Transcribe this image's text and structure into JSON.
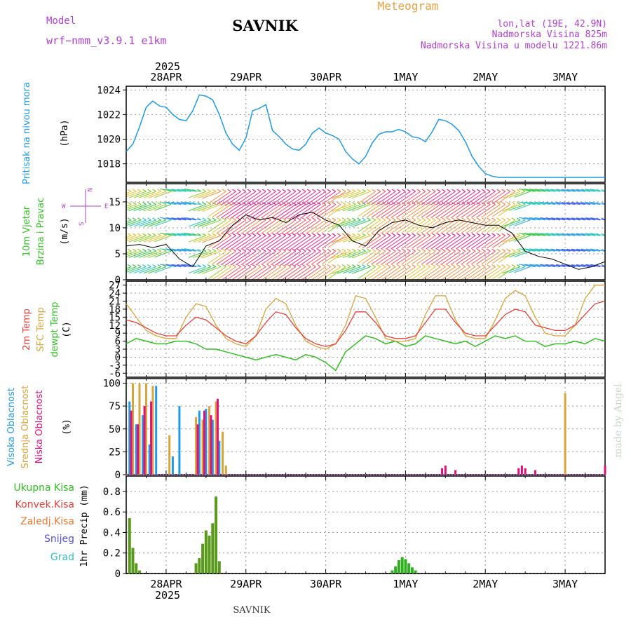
{
  "header": {
    "title": "SAVNIK",
    "model_label": "Model",
    "model_name": "wrf−nmm_v3.9.1  e1km",
    "meteogram_label": "Meteogram",
    "lonlat": "lon,lat (19E, 42.9N)",
    "elevation": "Nadmorska Visina 825m",
    "model_elevation": "Nadmorska Visina u modelu 1221.86m",
    "footer": "SAVNIK",
    "credit": "made by Angel"
  },
  "colors": {
    "pressure": "#1e9be6",
    "temp2m": "#e8403a",
    "sfc_temp": "#d9a53a",
    "dewpoint": "#30c020",
    "wind_line": "#000000",
    "high_cloud": "#1e9be6",
    "mid_cloud": "#d9a53a",
    "low_cloud": "#e0107a",
    "rain_total": "#5a9a1a",
    "rain_conv": "#e8403a",
    "label_magenta": "#b040d0",
    "label_orange": "#e8a040"
  },
  "time_axis": {
    "year": "2025",
    "days": [
      "28APR",
      "29APR",
      "30APR",
      "1MAY",
      "2MAY",
      "3MAY"
    ],
    "day_positions_hours": [
      12,
      36,
      60,
      84,
      108,
      132
    ],
    "range_hours": [
      0,
      144
    ]
  },
  "chart_data": [
    {
      "type": "line",
      "title": "Pritisak na nivou mora",
      "ylabel": "(hPa)",
      "ylim": [
        1016.5,
        1024.3
      ],
      "yticks": [
        1018,
        1020,
        1022,
        1024
      ],
      "grid": true,
      "series": [
        {
          "name": "Pritisak na nivou mora",
          "x": [
            0,
            2,
            4,
            6,
            8,
            10,
            12,
            14,
            16,
            18,
            20,
            22,
            24,
            26,
            28,
            30,
            32,
            34,
            36,
            38,
            40,
            42,
            44,
            46,
            48,
            50,
            52,
            54,
            56,
            58,
            60,
            62,
            64,
            66,
            68,
            70,
            72,
            74,
            76,
            78,
            80,
            82,
            84,
            86,
            88,
            90,
            92,
            94,
            96,
            98,
            100,
            102,
            104,
            106,
            108,
            110,
            112,
            114,
            116,
            118,
            120,
            122,
            124,
            126,
            128,
            130,
            132,
            134,
            136,
            138,
            140,
            142,
            144
          ],
          "y": [
            1019.0,
            1019.6,
            1021.0,
            1022.6,
            1023.1,
            1022.7,
            1022.6,
            1022.0,
            1021.6,
            1021.5,
            1022.3,
            1023.6,
            1023.5,
            1023.2,
            1022.0,
            1020.5,
            1019.6,
            1019.1,
            1020.1,
            1022.3,
            1022.5,
            1022.8,
            1020.7,
            1020.2,
            1019.6,
            1019.2,
            1019.1,
            1019.6,
            1020.5,
            1020.9,
            1020.5,
            1020.3,
            1020.0,
            1019.0,
            1018.4,
            1018.0,
            1018.6,
            1019.7,
            1020.4,
            1020.6,
            1020.6,
            1020.8,
            1020.6,
            1020.2,
            1020.1,
            1019.8,
            1020.6,
            1021.6,
            1021.5,
            1021.2,
            1020.7,
            1019.8,
            1018.6,
            1017.8,
            1017.2,
            1017.0,
            1016.9,
            1016.9,
            1016.9,
            1016.9,
            1016.9,
            1016.9,
            1016.9,
            1016.9,
            1016.9,
            1016.9,
            1016.9,
            1016.9,
            1016.9,
            1016.9,
            1016.9,
            1016.9,
            1016.9
          ]
        }
      ]
    },
    {
      "type": "line",
      "title": "10m Vjetar Brzina i Pravac",
      "ylabel": "(m/s)",
      "ylim": [
        0,
        18.5
      ],
      "yticks": [
        0,
        5,
        10,
        15
      ],
      "grid": true,
      "direction_legend": {
        "n": "N",
        "s": "S",
        "e": "E",
        "w": "W"
      },
      "series": [
        {
          "name": "10m Vjetar",
          "x": [
            0,
            4,
            8,
            12,
            16,
            20,
            24,
            28,
            32,
            36,
            40,
            44,
            48,
            52,
            56,
            60,
            64,
            68,
            72,
            76,
            80,
            84,
            88,
            92,
            96,
            100,
            104,
            108,
            112,
            116,
            120,
            124,
            128,
            132,
            136,
            140,
            144
          ],
          "y": [
            6.5,
            6.8,
            6.2,
            6.8,
            4.0,
            2.5,
            6.5,
            7.5,
            10.5,
            12.5,
            11.5,
            12.0,
            11.0,
            12.5,
            13.0,
            11.5,
            10.5,
            7.5,
            6.5,
            9.5,
            11.0,
            11.5,
            10.5,
            10.0,
            11.0,
            11.5,
            11.0,
            10.5,
            10.5,
            9.0,
            5.5,
            4.5,
            4.0,
            3.0,
            2.0,
            2.5,
            3.5
          ]
        }
      ]
    },
    {
      "type": "line",
      "ylabel": "(C)",
      "ylim": [
        -7.5,
        28.5
      ],
      "yticks": [
        -6,
        -3,
        0,
        3,
        6,
        9,
        12,
        15,
        18,
        21,
        24,
        27
      ],
      "grid": true,
      "series": [
        {
          "name": "2m Temp",
          "x": [
            0,
            3,
            6,
            9,
            12,
            15,
            18,
            21,
            24,
            27,
            30,
            33,
            36,
            39,
            42,
            45,
            48,
            51,
            54,
            57,
            60,
            63,
            66,
            69,
            72,
            75,
            78,
            81,
            84,
            87,
            90,
            93,
            96,
            99,
            102,
            105,
            108,
            111,
            114,
            117,
            120,
            123,
            126,
            129,
            132,
            135,
            138,
            141,
            144
          ],
          "y": [
            14,
            13,
            11,
            9,
            8,
            8,
            12,
            15,
            14,
            11,
            8,
            6,
            5,
            8,
            13,
            17,
            16,
            11,
            7,
            5,
            4,
            5,
            10,
            17,
            17,
            13,
            8,
            7,
            7,
            8,
            13,
            18,
            18,
            13,
            9,
            8,
            8,
            12,
            16,
            18,
            17,
            12,
            11,
            10,
            10,
            12,
            16,
            20,
            21
          ]
        },
        {
          "name": "SFC Temp",
          "x": [
            0,
            3,
            6,
            9,
            12,
            15,
            18,
            21,
            24,
            27,
            30,
            33,
            36,
            39,
            42,
            45,
            48,
            51,
            54,
            57,
            60,
            63,
            66,
            69,
            72,
            75,
            78,
            81,
            84,
            87,
            90,
            93,
            96,
            99,
            102,
            105,
            108,
            111,
            114,
            117,
            120,
            123,
            126,
            129,
            132,
            135,
            138,
            141,
            144
          ],
          "y": [
            20,
            15,
            10,
            8,
            7,
            7,
            15,
            20,
            19,
            12,
            7,
            5,
            4,
            8,
            18,
            22,
            20,
            12,
            6,
            4,
            3,
            5,
            12,
            23,
            22,
            15,
            7,
            6,
            6,
            7,
            16,
            23,
            23,
            14,
            8,
            7,
            7,
            14,
            22,
            25,
            23,
            15,
            9,
            8,
            8,
            12,
            22,
            27,
            27
          ]
        },
        {
          "name": "dewpt Temp",
          "x": [
            0,
            3,
            6,
            9,
            12,
            15,
            18,
            21,
            24,
            27,
            30,
            33,
            36,
            39,
            42,
            45,
            48,
            51,
            54,
            57,
            60,
            63,
            66,
            69,
            72,
            75,
            78,
            81,
            84,
            87,
            90,
            93,
            96,
            99,
            102,
            105,
            108,
            111,
            114,
            117,
            120,
            123,
            126,
            129,
            132,
            135,
            138,
            141,
            144
          ],
          "y": [
            5,
            7,
            6,
            5,
            5,
            6,
            6,
            5,
            3,
            3,
            2,
            1,
            0,
            -1,
            0,
            1,
            0,
            -1,
            1,
            0,
            -2,
            -5,
            2,
            5,
            8,
            7,
            5,
            6,
            4,
            5,
            8,
            7,
            6,
            5,
            6,
            4,
            6,
            8,
            7,
            8,
            6,
            6,
            4,
            5,
            5,
            6,
            5,
            7,
            6
          ]
        }
      ]
    },
    {
      "type": "bar",
      "ylabel": "(%)",
      "ylim": [
        0,
        105
      ],
      "yticks": [
        0,
        25,
        50,
        75,
        100
      ],
      "grid": true,
      "series": [
        {
          "name": "Visoka Oblacnost",
          "x": [
            1,
            3,
            5,
            7,
            9,
            14,
            16,
            22,
            24,
            26,
            28
          ],
          "y": [
            80,
            55,
            65,
            33,
            97,
            20,
            75,
            70,
            72,
            60,
            37
          ]
        },
        {
          "name": "Srednja Oblacnost",
          "x": [
            2,
            4,
            6,
            8,
            13,
            21,
            23,
            25,
            27,
            29,
            30,
            132,
            144
          ],
          "y": [
            100,
            100,
            100,
            97,
            43,
            63,
            60,
            75,
            80,
            47,
            10,
            89,
            10
          ]
        },
        {
          "name": "Niska Oblacnost",
          "x": [
            1.5,
            3.5,
            5.5,
            7.5,
            21.5,
            23.5,
            25.5,
            27.5,
            95,
            96,
            99,
            118,
            119,
            120,
            123,
            144
          ],
          "y": [
            70,
            55,
            75,
            80,
            55,
            70,
            65,
            83,
            7,
            10,
            5,
            7,
            10,
            7,
            5,
            10
          ]
        }
      ]
    },
    {
      "type": "bar",
      "ylabel": "1hr Precip (mm)",
      "ylim": [
        0,
        0.95
      ],
      "yticks": [
        0,
        0.2,
        0.4,
        0.6,
        0.8
      ],
      "grid": true,
      "series": [
        {
          "name": "Ukupna Kisa",
          "x": [
            1,
            2,
            3,
            4,
            21,
            22,
            23,
            24,
            25,
            26,
            27,
            28,
            80,
            81,
            82,
            83,
            84,
            85,
            86,
            87
          ],
          "y": [
            0.54,
            0.25,
            0.1,
            0.03,
            0.1,
            0.15,
            0.29,
            0.42,
            0.37,
            0.49,
            0.75,
            0.12,
            0.03,
            0.07,
            0.13,
            0.16,
            0.14,
            0.1,
            0.06,
            0.03
          ]
        },
        {
          "name": "Konvek.Kisa",
          "x": [],
          "y": []
        },
        {
          "name": "Zaledj.Kisa",
          "x": [],
          "y": []
        },
        {
          "name": "Snijeg",
          "x": [],
          "y": []
        },
        {
          "name": "Grad",
          "x": [],
          "y": []
        }
      ]
    }
  ],
  "labels": {
    "p1": [
      "Pritisak na nivou mora"
    ],
    "p2": [
      "10m Vjetar",
      "Brzina i Pravac"
    ],
    "p3": [
      "2m Temp",
      "SFC Temp",
      "dewpt Temp"
    ],
    "p4": [
      "Visoka Oblacnost",
      "Srednja Oblacnost",
      "Niska Oblacnost"
    ],
    "p5": [
      "Ukupna Kisa",
      "Konvek.Kisa",
      "Zaledj.Kisa",
      "Snijeg",
      "Grad"
    ]
  }
}
